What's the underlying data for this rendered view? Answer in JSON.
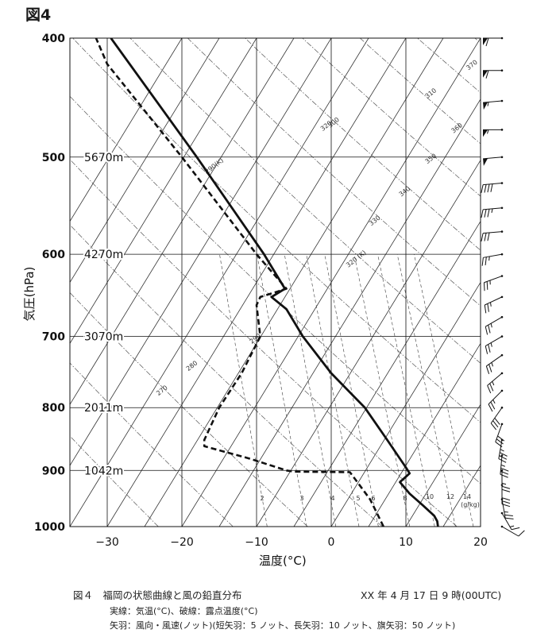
{
  "figure_label": "図4",
  "caption": {
    "title": "図４　福岡の状態曲線と風の鉛直分布",
    "date": "XX 年 4 月 17 日 9 時(00UTC)",
    "note1": "実線：気温(°C)、破線：露点温度(°C)",
    "note2": "矢羽：風向・風速(ノット)(短矢羽：5 ノット、長矢羽：10 ノット、旗矢羽：50 ノット)"
  },
  "chart_data": {
    "type": "line",
    "title": "",
    "xlabel": "温度(°C)",
    "ylabel": "気圧(hPa)",
    "xlim": [
      -35,
      20
    ],
    "ylim": [
      1000,
      400
    ],
    "y_scale": "log",
    "x_ticks": [
      -30,
      -20,
      -10,
      0,
      10,
      20
    ],
    "x_tick_labels": [
      "−30",
      "−20",
      "−10",
      "0",
      "10",
      "20"
    ],
    "y_ticks": [
      400,
      500,
      600,
      700,
      800,
      900,
      1000
    ],
    "y_tick_labels": [
      "400",
      "500",
      "600",
      "700",
      "800",
      "900",
      "1000"
    ],
    "heights": [
      {
        "p": 500,
        "label": "5670m"
      },
      {
        "p": 600,
        "label": "4270m"
      },
      {
        "p": 700,
        "label": "3070m"
      },
      {
        "p": 800,
        "label": "2011m"
      },
      {
        "p": 900,
        "label": "1042m"
      }
    ],
    "temperature": {
      "style": "solid",
      "points": [
        {
          "p": 1000,
          "t": 14.3
        },
        {
          "p": 990,
          "t": 14.2
        },
        {
          "p": 980,
          "t": 13.8
        },
        {
          "p": 960,
          "t": 12.2
        },
        {
          "p": 940,
          "t": 10.5
        },
        {
          "p": 920,
          "t": 9.2
        },
        {
          "p": 905,
          "t": 10.5
        },
        {
          "p": 895,
          "t": 10.0
        },
        {
          "p": 850,
          "t": 7.5
        },
        {
          "p": 800,
          "t": 4.5
        },
        {
          "p": 750,
          "t": 0.0
        },
        {
          "p": 700,
          "t": -3.8
        },
        {
          "p": 665,
          "t": -6.0
        },
        {
          "p": 650,
          "t": -8.0
        },
        {
          "p": 640,
          "t": -6.2
        },
        {
          "p": 600,
          "t": -9.0
        },
        {
          "p": 500,
          "t": -18.0
        },
        {
          "p": 400,
          "t": -29.5
        }
      ]
    },
    "dewpoint": {
      "style": "dashed",
      "points": [
        {
          "p": 1000,
          "t": 7.0
        },
        {
          "p": 980,
          "t": 6.3
        },
        {
          "p": 950,
          "t": 5.2
        },
        {
          "p": 920,
          "t": 3.5
        },
        {
          "p": 903,
          "t": 2.5
        },
        {
          "p": 902,
          "t": -5.0
        },
        {
          "p": 900,
          "t": -6.0
        },
        {
          "p": 880,
          "t": -11.0
        },
        {
          "p": 860,
          "t": -17.0
        },
        {
          "p": 850,
          "t": -17.0
        },
        {
          "p": 800,
          "t": -15.0
        },
        {
          "p": 750,
          "t": -12.0
        },
        {
          "p": 700,
          "t": -9.5
        },
        {
          "p": 660,
          "t": -10.0
        },
        {
          "p": 650,
          "t": -9.5
        },
        {
          "p": 640,
          "t": -6.0
        },
        {
          "p": 600,
          "t": -10.0
        },
        {
          "p": 500,
          "t": -20.0
        },
        {
          "p": 420,
          "t": -30.0
        },
        {
          "p": 400,
          "t": -31.5
        }
      ]
    },
    "dry_adiabat_labels": [
      "270",
      "280",
      "290",
      "300",
      "310",
      "320",
      "330",
      "340",
      "350",
      "360",
      "370",
      "290(K)",
      "320 (K)"
    ],
    "mixing_ratio_labels": [
      "2",
      "3",
      "4",
      "5",
      "6",
      "8",
      "10",
      "12",
      "14",
      "(g/kg)"
    ],
    "wind_note": "wind barbs on right side at pressure levels",
    "winds": [
      {
        "p": 400,
        "dir": 270,
        "spd": 60
      },
      {
        "p": 425,
        "dir": 270,
        "spd": 60
      },
      {
        "p": 450,
        "dir": 265,
        "spd": 55
      },
      {
        "p": 475,
        "dir": 270,
        "spd": 55
      },
      {
        "p": 500,
        "dir": 265,
        "spd": 50
      },
      {
        "p": 525,
        "dir": 265,
        "spd": 40
      },
      {
        "p": 550,
        "dir": 265,
        "spd": 35
      },
      {
        "p": 575,
        "dir": 265,
        "spd": 30
      },
      {
        "p": 600,
        "dir": 260,
        "spd": 25
      },
      {
        "p": 625,
        "dir": 250,
        "spd": 25
      },
      {
        "p": 650,
        "dir": 245,
        "spd": 25
      },
      {
        "p": 675,
        "dir": 240,
        "spd": 25
      },
      {
        "p": 700,
        "dir": 240,
        "spd": 25
      },
      {
        "p": 725,
        "dir": 235,
        "spd": 25
      },
      {
        "p": 750,
        "dir": 230,
        "spd": 25
      },
      {
        "p": 775,
        "dir": 225,
        "spd": 25
      },
      {
        "p": 800,
        "dir": 215,
        "spd": 30
      },
      {
        "p": 825,
        "dir": 200,
        "spd": 30
      },
      {
        "p": 850,
        "dir": 190,
        "spd": 35
      },
      {
        "p": 875,
        "dir": 185,
        "spd": 35
      },
      {
        "p": 900,
        "dir": 180,
        "spd": 25
      },
      {
        "p": 925,
        "dir": 180,
        "spd": 30
      },
      {
        "p": 950,
        "dir": 170,
        "spd": 25
      },
      {
        "p": 975,
        "dir": 150,
        "spd": 15
      },
      {
        "p": 1000,
        "dir": 120,
        "spd": 10
      }
    ]
  }
}
